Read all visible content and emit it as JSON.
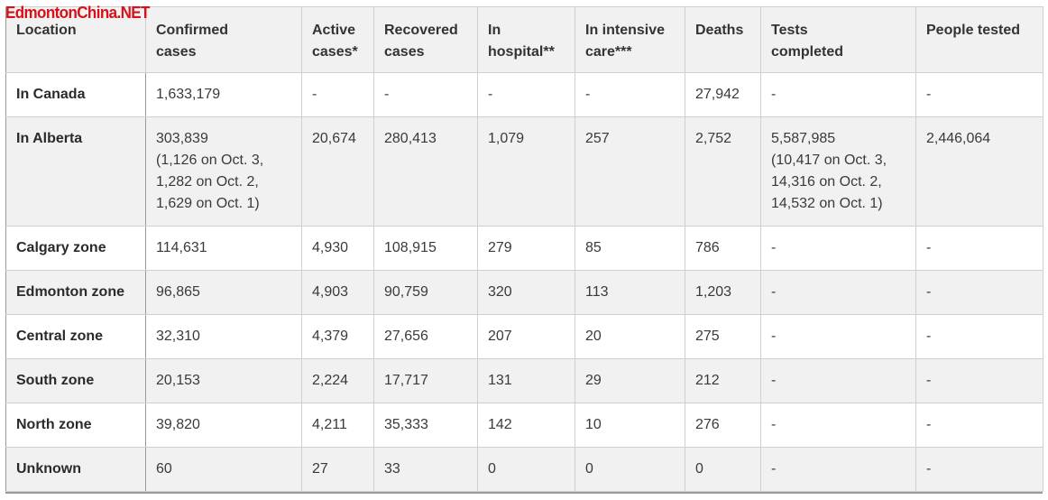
{
  "watermark": "EdmontonChina.NET",
  "headers": [
    "Location",
    "Confirmed\ncases",
    "Active\ncases*",
    "Recovered\ncases",
    "In\nhospital**",
    "In intensive\ncare***",
    "Deaths",
    "Tests\ncompleted",
    "People tested"
  ],
  "rows": [
    [
      "In Canada",
      "1,633,179",
      "-",
      "-",
      "-",
      "-",
      "27,942",
      "-",
      "-"
    ],
    [
      "In Alberta",
      "303,839\n(1,126 on Oct. 3,\n1,282 on Oct. 2,\n1,629 on Oct. 1)",
      "20,674",
      "280,413",
      "1,079",
      "257",
      "2,752",
      "5,587,985\n(10,417 on Oct. 3,\n14,316 on Oct. 2,\n14,532 on Oct. 1)",
      "2,446,064"
    ],
    [
      "Calgary zone",
      "114,631",
      "4,930",
      "108,915",
      "279",
      "85",
      "786",
      "-",
      "-"
    ],
    [
      "Edmonton zone",
      "96,865",
      "4,903",
      "90,759",
      "320",
      "113",
      "1,203",
      "-",
      "-"
    ],
    [
      "Central zone",
      "32,310",
      "4,379",
      "27,656",
      "207",
      "20",
      "275",
      "-",
      "-"
    ],
    [
      "South zone",
      "20,153",
      "2,224",
      "17,717",
      "131",
      "29",
      "212",
      "-",
      "-"
    ],
    [
      "North zone",
      "39,820",
      "4,211",
      "35,333",
      "142",
      "10",
      "276",
      "-",
      "-"
    ],
    [
      "Unknown",
      "60",
      "27",
      "33",
      "0",
      "0",
      "0",
      "-",
      "-"
    ]
  ]
}
